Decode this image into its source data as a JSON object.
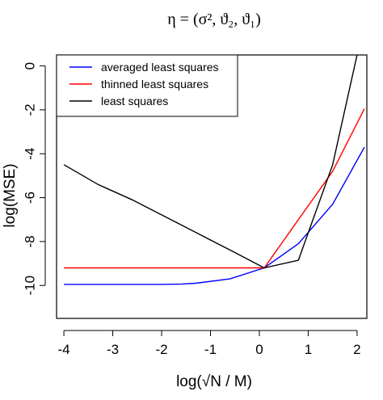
{
  "chart_data": {
    "type": "line",
    "title": "η = (σ², ϑ₂, ϑ₁)",
    "xlabel": "log(√N / M)",
    "ylabel": "log(MSE)",
    "xlim": [
      -4.15,
      2.2
    ],
    "ylim": [
      -11.5,
      0.5
    ],
    "x_ticks": [
      -4,
      -3,
      -2,
      -1,
      0,
      1,
      2
    ],
    "y_ticks": [
      0,
      -2,
      -4,
      -6,
      -8,
      -10
    ],
    "x_tick_labels": [
      "-4",
      "-3",
      "-2",
      "-1",
      "0",
      "1",
      "2"
    ],
    "y_tick_labels": [
      "0",
      "-2",
      "-4",
      "-6",
      "-8",
      "-10"
    ],
    "grid": false,
    "legend_position": "top-left",
    "series": [
      {
        "name": "averaged least squares",
        "color": "#0000ff",
        "x": [
          -4.0,
          -3.0,
          -2.0,
          -1.6,
          -1.3,
          -0.6,
          0.1,
          0.8,
          1.5,
          2.15
        ],
        "y": [
          -9.95,
          -9.95,
          -9.95,
          -9.94,
          -9.9,
          -9.7,
          -9.2,
          -8.1,
          -6.3,
          -3.7
        ]
      },
      {
        "name": "thinned least squares",
        "color": "#ff0000",
        "x": [
          -4.0,
          0.1,
          0.8,
          1.5,
          2.15
        ],
        "y": [
          -9.2,
          -9.2,
          -7.0,
          -4.8,
          -1.95
        ]
      },
      {
        "name": "least squares",
        "color": "#000000",
        "x": [
          -4.0,
          -3.3,
          -2.6,
          -1.9,
          -1.2,
          -0.5,
          0.1,
          0.8,
          1.5,
          2.0
        ],
        "y": [
          -4.5,
          -5.4,
          -6.1,
          -6.9,
          -7.7,
          -8.5,
          -9.2,
          -8.85,
          -4.5,
          0.5
        ]
      }
    ]
  }
}
